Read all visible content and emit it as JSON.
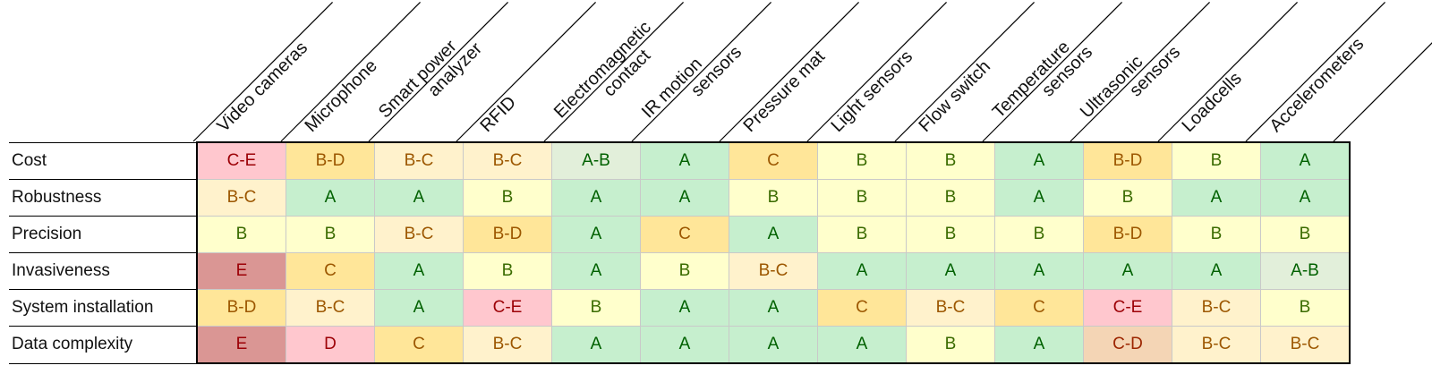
{
  "chart_data": {
    "type": "table",
    "title": "",
    "columns": [
      [
        "Video cameras"
      ],
      [
        "Microphone"
      ],
      [
        "Smart power",
        "analyzer"
      ],
      [
        "RFID"
      ],
      [
        "Electromagnetic",
        "contact"
      ],
      [
        "IR motion",
        "sensors"
      ],
      [
        "Pressure mat"
      ],
      [
        "Light sensors"
      ],
      [
        "Flow switch"
      ],
      [
        "Temperature",
        "sensors"
      ],
      [
        "Ultrasonic",
        "sensors"
      ],
      [
        "Loadcells"
      ],
      [
        "Accelerometers"
      ]
    ],
    "rows": [
      {
        "label": "Cost",
        "values": [
          "C-E",
          "B-D",
          "B-C",
          "B-C",
          "A-B",
          "A",
          "C",
          "B",
          "B",
          "A",
          "B-D",
          "B",
          "A"
        ]
      },
      {
        "label": "Robustness",
        "values": [
          "B-C",
          "A",
          "A",
          "B",
          "A",
          "A",
          "B",
          "B",
          "B",
          "A",
          "B",
          "A",
          "A"
        ]
      },
      {
        "label": "Precision",
        "values": [
          "B",
          "B",
          "B-C",
          "B-D",
          "A",
          "C",
          "A",
          "B",
          "B",
          "B",
          "B-D",
          "B",
          "B"
        ]
      },
      {
        "label": "Invasiveness",
        "values": [
          "E",
          "C",
          "A",
          "B",
          "A",
          "B",
          "B-C",
          "A",
          "A",
          "A",
          "A",
          "A",
          "A-B"
        ]
      },
      {
        "label": "System installation",
        "values": [
          "B-D",
          "B-C",
          "A",
          "C-E",
          "B",
          "A",
          "A",
          "C",
          "B-C",
          "C",
          "C-E",
          "B-C",
          "B"
        ]
      },
      {
        "label": "Data complexity",
        "values": [
          "E",
          "D",
          "C",
          "B-C",
          "A",
          "A",
          "A",
          "A",
          "B",
          "A",
          "C-D",
          "B-C",
          "B-C"
        ]
      }
    ],
    "grade_colors": {
      "A": {
        "bg": "#c6efce",
        "fg": "#006100"
      },
      "A-B": {
        "bg": "#e2efda",
        "fg": "#006100"
      },
      "B": {
        "bg": "#ffffcc",
        "fg": "#3a6b00"
      },
      "B-C": {
        "bg": "#fff2cc",
        "fg": "#9c5700"
      },
      "B-D": {
        "bg": "#ffe699",
        "fg": "#9c5700"
      },
      "C": {
        "bg": "#ffe699",
        "fg": "#9c5700"
      },
      "C-D": {
        "bg": "#f4d5b5",
        "fg": "#9c2500"
      },
      "C-E": {
        "bg": "#ffc7ce",
        "fg": "#9c0006"
      },
      "D": {
        "bg": "#ffc7ce",
        "fg": "#9c0006"
      },
      "E": {
        "bg": "#da9694",
        "fg": "#9c0006"
      }
    }
  }
}
